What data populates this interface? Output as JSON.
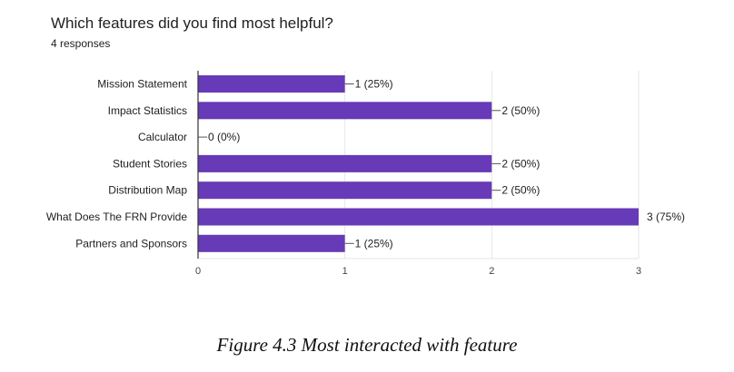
{
  "question": {
    "title": "Which features did you find most helpful?",
    "responses": "4 responses"
  },
  "caption": "Figure 4.3 Most interacted with feature",
  "colors": {
    "bar": "#673ab7",
    "grid": "#e6e6e6",
    "axis": "#333333",
    "text": "#202124"
  },
  "chart_data": {
    "type": "bar",
    "orientation": "horizontal",
    "title": "Which features did you find most helpful?",
    "categories": [
      "Mission Statement",
      "Impact Statistics",
      "Calculator",
      "Student Stories",
      "Distribution Map",
      "What Does The FRN Provide",
      "Partners and Sponsors"
    ],
    "values": [
      1,
      2,
      0,
      2,
      2,
      3,
      1
    ],
    "data_labels": [
      "1 (25%)",
      "2 (50%)",
      "0 (0%)",
      "2 (50%)",
      "2 (50%)",
      "3 (75%)",
      "1 (25%)"
    ],
    "xlim": [
      0,
      3
    ],
    "xticks": [
      0,
      1,
      2,
      3
    ],
    "grid": true,
    "legend": "none"
  }
}
